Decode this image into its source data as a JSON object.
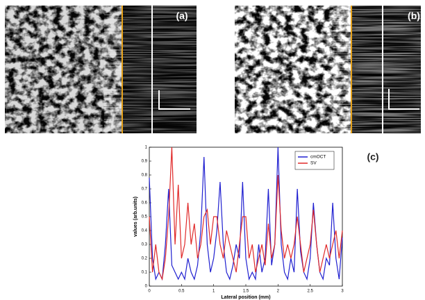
{
  "panels": [
    {
      "label": "(a)"
    },
    {
      "label": "(b)"
    }
  ],
  "chart_data": {
    "type": "line",
    "panel_label": "(c)",
    "xlabel": "Lateral position (mm)",
    "ylabel": "values (arb.units)",
    "x": [
      0,
      0.05,
      0.1,
      0.15,
      0.2,
      0.25,
      0.3,
      0.35,
      0.4,
      0.45,
      0.5,
      0.55,
      0.6,
      0.65,
      0.7,
      0.75,
      0.8,
      0.85,
      0.9,
      0.95,
      1,
      1.05,
      1.1,
      1.15,
      1.2,
      1.25,
      1.3,
      1.35,
      1.4,
      1.45,
      1.5,
      1.55,
      1.6,
      1.65,
      1.7,
      1.75,
      1.8,
      1.85,
      1.9,
      1.95,
      2,
      2.05,
      2.1,
      2.15,
      2.2,
      2.25,
      2.3,
      2.35,
      2.4,
      2.45,
      2.5,
      2.55,
      2.6,
      2.65,
      2.7,
      2.75,
      2.8,
      2.85,
      2.9,
      2.95,
      3
    ],
    "series": [
      {
        "name": "cmOCT",
        "color": "#1f1fd0",
        "values": [
          0.78,
          0.2,
          0.05,
          0.1,
          0.05,
          0.3,
          0.7,
          0.15,
          0.1,
          0.05,
          0.1,
          0.05,
          0.2,
          0.1,
          0.05,
          0.15,
          0.4,
          0.93,
          0.3,
          0.1,
          0.2,
          0.4,
          0.75,
          0.3,
          0.1,
          0.05,
          0.15,
          0.3,
          0.2,
          0.75,
          0.2,
          0.05,
          0.1,
          0.05,
          0.3,
          0.1,
          0.2,
          0.7,
          0.15,
          0.3,
          1.0,
          0.3,
          0.1,
          0.05,
          0.2,
          0.1,
          0.7,
          0.25,
          0.1,
          0.05,
          0.2,
          0.6,
          0.3,
          0.1,
          0.05,
          0.2,
          0.15,
          0.6,
          0.2,
          0.05,
          0.35
        ]
      },
      {
        "name": "SV",
        "color": "#e02828",
        "values": [
          0.5,
          0.1,
          0.3,
          0.1,
          0.05,
          0.2,
          0.5,
          1.0,
          0.3,
          0.73,
          0.2,
          0.3,
          0.6,
          0.3,
          0.45,
          0.2,
          0.3,
          0.5,
          0.55,
          0.3,
          0.5,
          0.5,
          0.3,
          0.2,
          0.4,
          0.3,
          0.2,
          0.1,
          0.3,
          0.5,
          0.5,
          0.2,
          0.3,
          0.1,
          0.2,
          0.3,
          0.15,
          0.45,
          0.2,
          0.3,
          0.8,
          0.4,
          0.2,
          0.3,
          0.2,
          0.3,
          0.5,
          0.3,
          0.1,
          0.2,
          0.3,
          0.55,
          0.3,
          0.1,
          0.2,
          0.3,
          0.2,
          0.3,
          0.4,
          0.2,
          0.4
        ]
      }
    ],
    "xlim": [
      0,
      3
    ],
    "xticks": [
      0,
      0.5,
      1,
      1.5,
      2,
      2.5,
      3
    ],
    "ylim": [
      0,
      1
    ],
    "yticks": [
      0,
      0.1,
      0.2,
      0.3,
      0.4,
      0.5,
      0.6,
      0.7,
      0.8,
      0.9,
      1
    ],
    "legend": "top-right"
  }
}
